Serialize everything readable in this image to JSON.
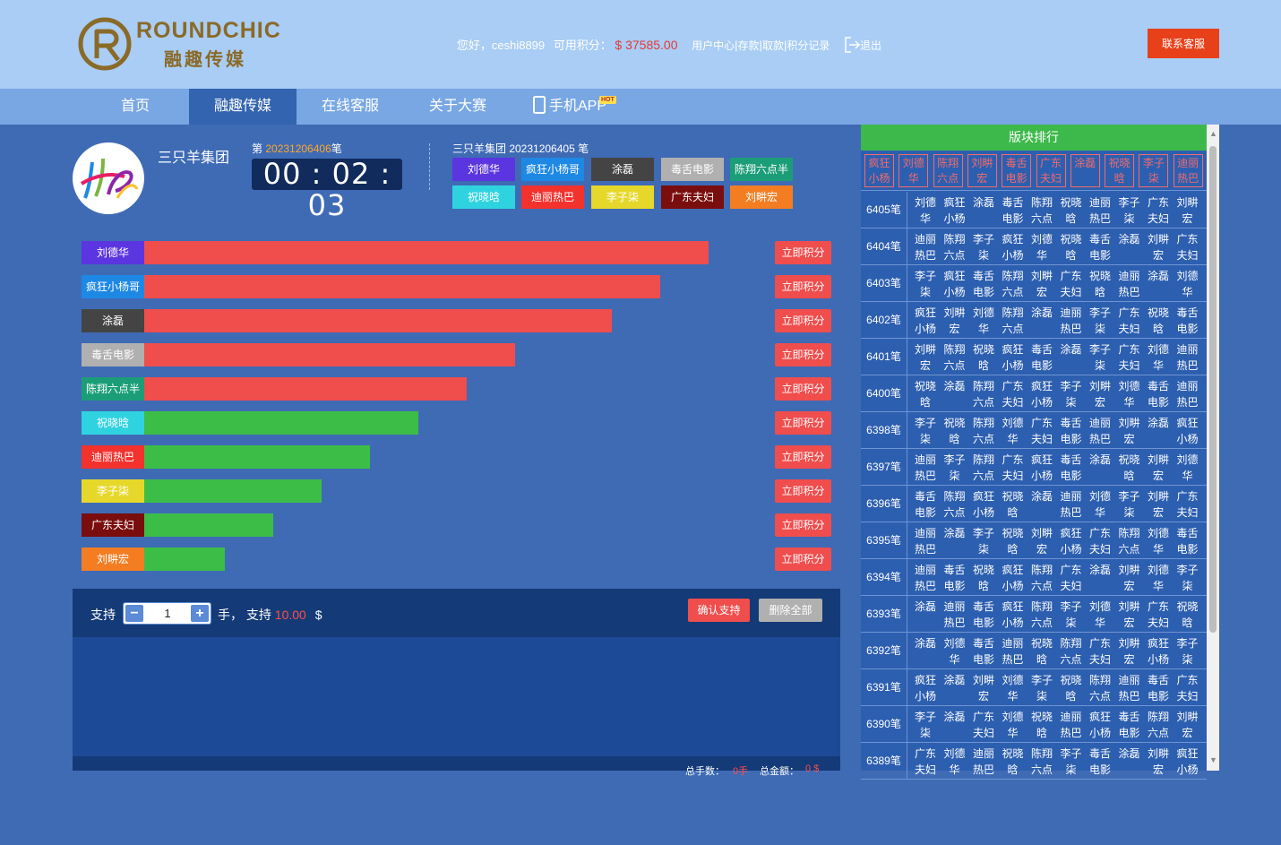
{
  "brand": {
    "name_en": "ROUNDCHIC",
    "name_cn": "融趣传媒"
  },
  "user": {
    "greeting": "您好，ceshi8899",
    "points_label": "可用积分：",
    "balance": "$ 37585.00",
    "links": [
      "用户中心",
      "存款",
      "取款",
      "积分记录"
    ],
    "logout": "退出",
    "contact": "联系客服"
  },
  "nav": {
    "items": [
      "首页",
      "融趣传媒",
      "在线客服",
      "关于大赛",
      "手机APP"
    ],
    "active": "融趣传媒",
    "hot": "HOT"
  },
  "game": {
    "group_name": "三只羊集团",
    "period_prefix": "第 ",
    "period": "20231206406",
    "period_suffix": "笔",
    "timer": "00 : 02 : 03",
    "last_result_label": "三只羊集团 20231206405 笔",
    "last_result": [
      {
        "name": "刘德华",
        "color": "#5b35e0"
      },
      {
        "name": "疯狂小杨哥",
        "color": "#1e88e5"
      },
      {
        "name": "涂磊",
        "color": "#444444"
      },
      {
        "name": "毒舌电影",
        "color": "#b0b0b0"
      },
      {
        "name": "陈翔六点半",
        "color": "#1b9e77"
      },
      {
        "name": "祝晓晗",
        "color": "#2fd3e0"
      },
      {
        "name": "迪丽热巴",
        "color": "#f3312d"
      },
      {
        "name": "李子柒",
        "color": "#e6d82b"
      },
      {
        "name": "广东夫妇",
        "color": "#7a0d0d"
      },
      {
        "name": "刘畊宏",
        "color": "#f47d22"
      }
    ]
  },
  "bars": {
    "button_label": "立即积分",
    "items": [
      {
        "name": "刘德华",
        "color": "#5b35e0",
        "fill": "#f04d4d",
        "level": 1.0
      },
      {
        "name": "疯狂小杨哥",
        "color": "#1e88e5",
        "fill": "#f04d4d",
        "level": 0.9
      },
      {
        "name": "涂磊",
        "color": "#444444",
        "fill": "#f04d4d",
        "level": 0.8
      },
      {
        "name": "毒舌电影",
        "color": "#b0b0b0",
        "fill": "#f04d4d",
        "level": 0.6
      },
      {
        "name": "陈翔六点半",
        "color": "#1b9e77",
        "fill": "#f04d4d",
        "level": 0.5
      },
      {
        "name": "祝晓晗",
        "color": "#2fd3e0",
        "fill": "#3cbd47",
        "level": 0.4
      },
      {
        "name": "迪丽热巴",
        "color": "#f3312d",
        "fill": "#3cbd47",
        "level": 0.3
      },
      {
        "name": "李子柒",
        "color": "#e6d82b",
        "fill": "#3cbd47",
        "level": 0.2
      },
      {
        "name": "广东夫妇",
        "color": "#7a0d0d",
        "fill": "#3cbd47",
        "level": 0.1
      },
      {
        "name": "刘畊宏",
        "color": "#f47d22",
        "fill": "#3cbd47",
        "level": 0.0
      }
    ]
  },
  "bet": {
    "support_label": "支持",
    "qty": "1",
    "minus": "−",
    "plus": "+",
    "tail_label": "手，  支持",
    "amount": "10.00",
    "currency": "$",
    "confirm": "确认支持",
    "clear": "删除全部",
    "footer_count_label": "总手数：",
    "footer_count": "0手",
    "footer_total_label": "总金额：",
    "footer_total": "0 $"
  },
  "ranking": {
    "title": "版块排行",
    "header": [
      "疯狂\n小杨",
      "刘德\n华",
      "陈翔\n六点",
      "刘畊\n宏",
      "毒舌\n电影",
      "广东\n夫妇",
      "涂磊",
      "祝晓\n晗",
      "李子\n柒",
      "迪丽\n热巴"
    ],
    "rows": [
      {
        "period": "6405笔",
        "cells": [
          "刘德\n华",
          "疯狂\n小杨",
          "涂磊",
          "毒舌\n电影",
          "陈翔\n六点",
          "祝晓\n晗",
          "迪丽\n热巴",
          "李子\n柒",
          "广东\n夫妇",
          "刘畊\n宏"
        ]
      },
      {
        "period": "6404笔",
        "cells": [
          "迪丽\n热巴",
          "陈翔\n六点",
          "李子\n柒",
          "疯狂\n小杨",
          "刘德\n华",
          "祝晓\n晗",
          "毒舌\n电影",
          "涂磊",
          "刘畊\n宏",
          "广东\n夫妇"
        ]
      },
      {
        "period": "6403笔",
        "cells": [
          "李子\n柒",
          "疯狂\n小杨",
          "毒舌\n电影",
          "陈翔\n六点",
          "刘畊\n宏",
          "广东\n夫妇",
          "祝晓\n晗",
          "迪丽\n热巴",
          "涂磊",
          "刘德\n华"
        ]
      },
      {
        "period": "6402笔",
        "cells": [
          "疯狂\n小杨",
          "刘畊\n宏",
          "刘德\n华",
          "陈翔\n六点",
          "涂磊",
          "迪丽\n热巴",
          "李子\n柒",
          "广东\n夫妇",
          "祝晓\n晗",
          "毒舌\n电影"
        ]
      },
      {
        "period": "6401笔",
        "cells": [
          "刘畊\n宏",
          "陈翔\n六点",
          "祝晓\n晗",
          "疯狂\n小杨",
          "毒舌\n电影",
          "涂磊",
          "李子\n柒",
          "广东\n夫妇",
          "刘德\n华",
          "迪丽\n热巴"
        ]
      },
      {
        "period": "6400笔",
        "cells": [
          "祝晓\n晗",
          "涂磊",
          "陈翔\n六点",
          "广东\n夫妇",
          "疯狂\n小杨",
          "李子\n柒",
          "刘畊\n宏",
          "刘德\n华",
          "毒舌\n电影",
          "迪丽\n热巴"
        ]
      },
      {
        "period": "6398笔",
        "cells": [
          "李子\n柒",
          "祝晓\n晗",
          "陈翔\n六点",
          "刘德\n华",
          "广东\n夫妇",
          "毒舌\n电影",
          "迪丽\n热巴",
          "刘畊\n宏",
          "涂磊",
          "疯狂\n小杨"
        ]
      },
      {
        "period": "6397笔",
        "cells": [
          "迪丽\n热巴",
          "李子\n柒",
          "陈翔\n六点",
          "广东\n夫妇",
          "疯狂\n小杨",
          "毒舌\n电影",
          "涂磊",
          "祝晓\n晗",
          "刘畊\n宏",
          "刘德\n华"
        ]
      },
      {
        "period": "6396笔",
        "cells": [
          "毒舌\n电影",
          "陈翔\n六点",
          "疯狂\n小杨",
          "祝晓\n晗",
          "涂磊",
          "迪丽\n热巴",
          "刘德\n华",
          "李子\n柒",
          "刘畊\n宏",
          "广东\n夫妇"
        ]
      },
      {
        "period": "6395笔",
        "cells": [
          "迪丽\n热巴",
          "涂磊",
          "李子\n柒",
          "祝晓\n晗",
          "刘畊\n宏",
          "疯狂\n小杨",
          "广东\n夫妇",
          "陈翔\n六点",
          "刘德\n华",
          "毒舌\n电影"
        ]
      },
      {
        "period": "6394笔",
        "cells": [
          "迪丽\n热巴",
          "毒舌\n电影",
          "祝晓\n晗",
          "疯狂\n小杨",
          "陈翔\n六点",
          "广东\n夫妇",
          "涂磊",
          "刘畊\n宏",
          "刘德\n华",
          "李子\n柒"
        ]
      },
      {
        "period": "6393笔",
        "cells": [
          "涂磊",
          "迪丽\n热巴",
          "毒舌\n电影",
          "疯狂\n小杨",
          "陈翔\n六点",
          "李子\n柒",
          "刘德\n华",
          "刘畊\n宏",
          "广东\n夫妇",
          "祝晓\n晗"
        ]
      },
      {
        "period": "6392笔",
        "cells": [
          "涂磊",
          "刘德\n华",
          "毒舌\n电影",
          "迪丽\n热巴",
          "祝晓\n晗",
          "陈翔\n六点",
          "广东\n夫妇",
          "刘畊\n宏",
          "疯狂\n小杨",
          "李子\n柒"
        ]
      },
      {
        "period": "6391笔",
        "cells": [
          "疯狂\n小杨",
          "涂磊",
          "刘畊\n宏",
          "刘德\n华",
          "李子\n柒",
          "祝晓\n晗",
          "陈翔\n六点",
          "迪丽\n热巴",
          "毒舌\n电影",
          "广东\n夫妇"
        ]
      },
      {
        "period": "6390笔",
        "cells": [
          "李子\n柒",
          "涂磊",
          "广东\n夫妇",
          "刘德\n华",
          "祝晓\n晗",
          "迪丽\n热巴",
          "疯狂\n小杨",
          "毒舌\n电影",
          "陈翔\n六点",
          "刘畊\n宏"
        ]
      },
      {
        "period": "6389笔",
        "cells": [
          "广东\n夫妇",
          "刘德\n华",
          "迪丽\n热巴",
          "祝晓\n晗",
          "陈翔\n六点",
          "李子\n柒",
          "毒舌\n电影",
          "涂磊",
          "刘畊\n宏",
          "疯狂\n小杨"
        ]
      }
    ]
  }
}
